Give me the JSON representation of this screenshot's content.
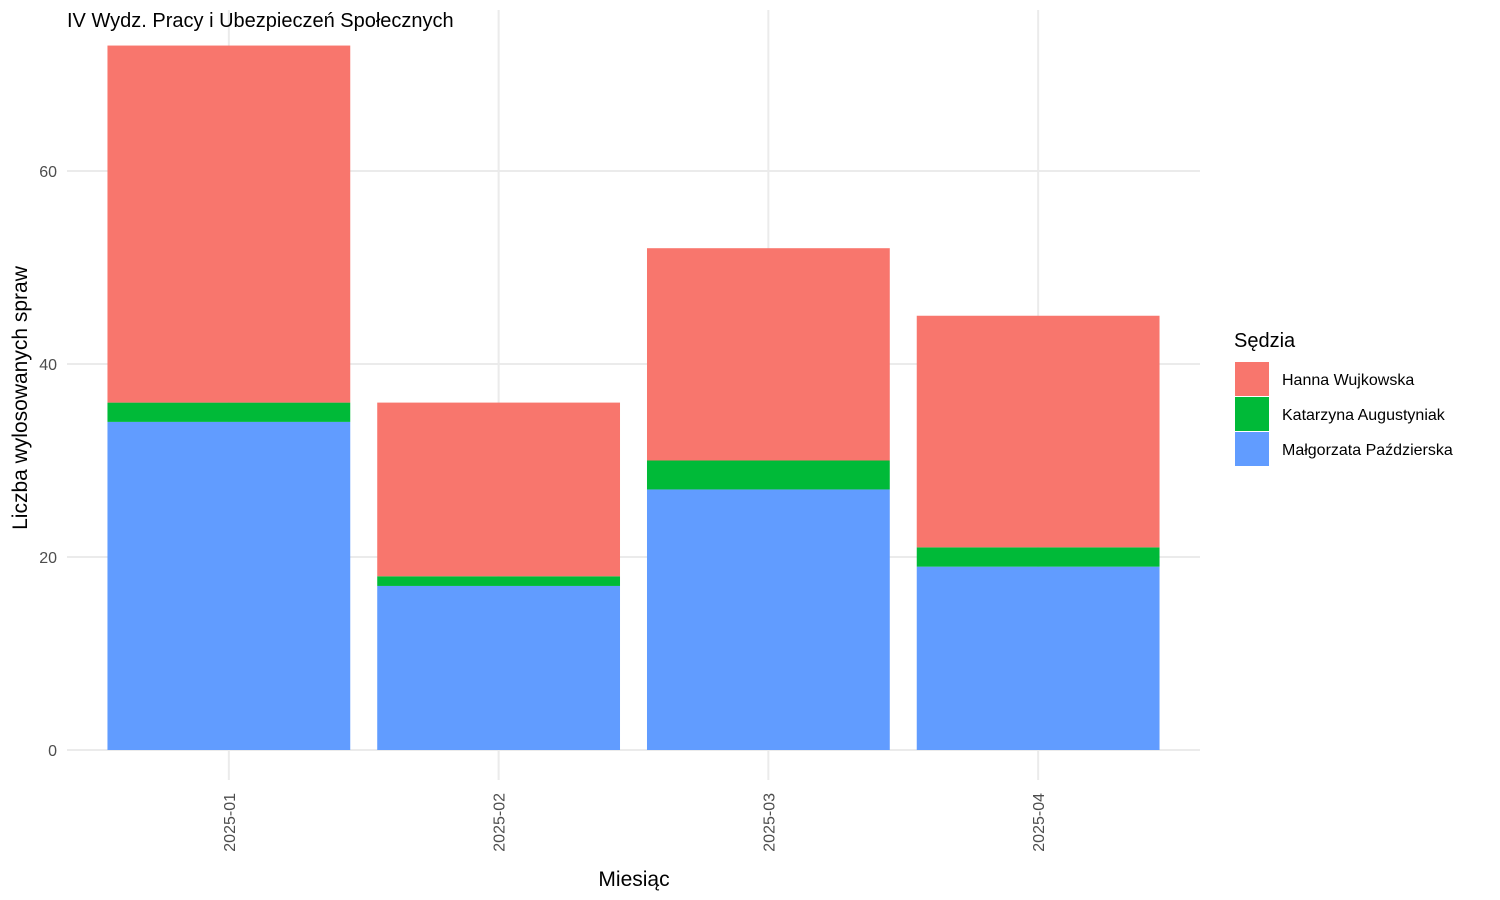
{
  "chart_data": {
    "type": "bar",
    "stacked": true,
    "title": "IV Wydz. Pracy i Ubezpieczeń Społecznych",
    "xlabel": "Miesiąc",
    "ylabel": "Liczba wylosowanych spraw",
    "categories": [
      "2025-01",
      "2025-02",
      "2025-03",
      "2025-04"
    ],
    "ylim": [
      0,
      75
    ],
    "yticks": [
      0,
      20,
      40,
      60
    ],
    "grid": true,
    "legend": {
      "title": "Sędzia",
      "position": "right"
    },
    "series": [
      {
        "name": "Małgorzata Paździerska",
        "color": "#619CFF",
        "values": [
          34,
          17,
          27,
          19
        ]
      },
      {
        "name": "Katarzyna Augustyniak",
        "color": "#00BA38",
        "values": [
          2,
          1,
          3,
          2
        ]
      },
      {
        "name": "Hanna Wujkowska",
        "color": "#F8766D",
        "values": [
          37,
          18,
          22,
          24
        ]
      }
    ],
    "legend_order": [
      "Hanna Wujkowska",
      "Katarzyna Augustyniak",
      "Małgorzata Paździerska"
    ]
  }
}
